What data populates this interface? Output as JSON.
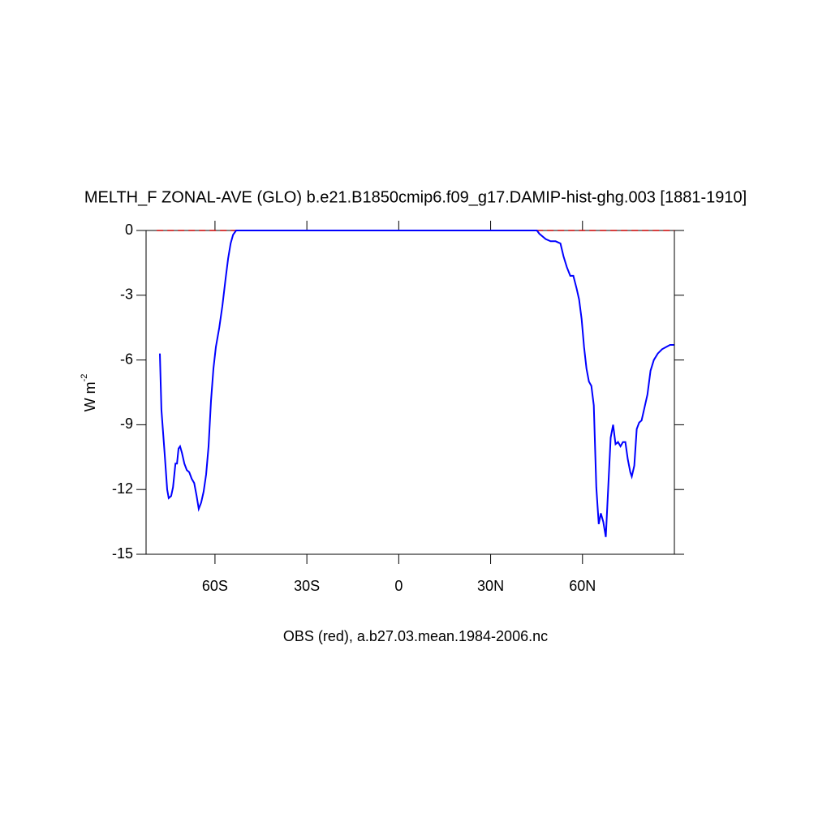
{
  "chart_data": {
    "type": "line",
    "title": "MELTH_F ZONAL-AVE (GLO) b.e21.B1850cmip6.f09_g17.DAMIP-hist-ghg.003 [1881-1910]",
    "ylabel": "W m",
    "ylabel_sup": "-2",
    "subtitle": "OBS (red), a.b27.03.mean.1984-2006.nc",
    "xlim": [
      -82.5,
      90
    ],
    "ylim": [
      -15,
      0
    ],
    "xticks": [
      {
        "value": -60,
        "label": "60S"
      },
      {
        "value": -30,
        "label": "30S"
      },
      0,
      {
        "value": 30,
        "label": "30N"
      },
      {
        "value": 60,
        "label": "60N"
      }
    ],
    "yticks": [
      0,
      -3,
      -6,
      -9,
      -12,
      -15
    ],
    "series": [
      {
        "color": "#0000ff",
        "dash": false,
        "x": [
          -78,
          -77.5,
          -76.4,
          -75.6,
          -75.1,
          -74.3,
          -73.7,
          -72.9,
          -72.4,
          -71.9,
          -71.4,
          -70.8,
          -70.0,
          -69.2,
          -68.4,
          -67.6,
          -66.8,
          -66.0,
          -65.3,
          -64.5,
          -63.7,
          -62.9,
          -62.1,
          -61.3,
          -60.5,
          -59.7,
          -58.6,
          -57.6,
          -56.5,
          -55.7,
          -54.9,
          -54.1,
          -53.1,
          -40,
          -20,
          0,
          20,
          40,
          45.1,
          45.9,
          48.0,
          49.6,
          51.2,
          52.8,
          53.8,
          54.9,
          56.0,
          57.0,
          58.1,
          58.9,
          59.7,
          60.5,
          61.3,
          62.1,
          62.9,
          63.7,
          64.5,
          65.3,
          66.0,
          66.8,
          67.6,
          68.4,
          69.2,
          70.0,
          70.8,
          71.6,
          72.4,
          73.2,
          74.0,
          74.8,
          75.6,
          76.1,
          76.9,
          77.7,
          78.5,
          79.3,
          80.1,
          81.2,
          82.2,
          83.3,
          84.6,
          86.0,
          87.3,
          88.6,
          89.9
        ],
        "values": [
          -5.7,
          -8.3,
          -10.4,
          -12.0,
          -12.4,
          -12.3,
          -11.9,
          -10.8,
          -10.8,
          -10.1,
          -10.0,
          -10.3,
          -10.8,
          -11.1,
          -11.2,
          -11.5,
          -11.7,
          -12.3,
          -12.9,
          -12.6,
          -12.1,
          -11.3,
          -10.0,
          -7.9,
          -6.4,
          -5.4,
          -4.5,
          -3.5,
          -2.2,
          -1.3,
          -0.6,
          -0.2,
          0,
          0,
          0,
          0,
          0,
          0,
          0,
          -0.15,
          -0.4,
          -0.5,
          -0.5,
          -0.6,
          -1.2,
          -1.7,
          -2.1,
          -2.1,
          -2.7,
          -3.2,
          -4.1,
          -5.4,
          -6.4,
          -7.0,
          -7.2,
          -8.1,
          -11.9,
          -13.6,
          -13.1,
          -13.5,
          -14.2,
          -11.9,
          -9.6,
          -9.0,
          -9.9,
          -9.8,
          -10.0,
          -9.8,
          -9.8,
          -10.6,
          -11.2,
          -11.4,
          -10.9,
          -9.2,
          -8.9,
          -8.8,
          -8.3,
          -7.6,
          -6.5,
          -6.0,
          -5.7,
          -5.5,
          -5.4,
          -5.3,
          -5.3
        ]
      },
      {
        "color": "#cc0000",
        "dash": true,
        "x": [
          -79,
          90
        ],
        "values": [
          0,
          0
        ]
      }
    ]
  }
}
